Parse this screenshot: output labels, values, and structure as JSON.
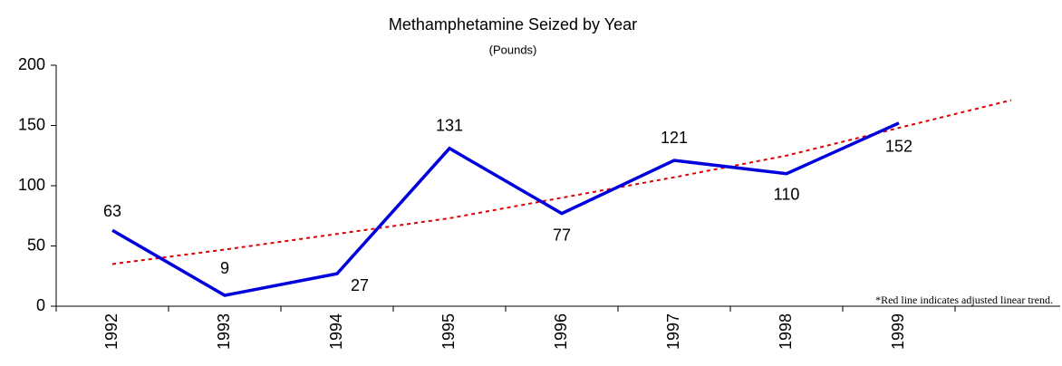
{
  "chart_data": {
    "type": "line",
    "title": "Methamphetamine Seized by Year",
    "subtitle": "(Pounds)",
    "annotation": "*Red line indicates adjusted linear trend.",
    "categories": [
      "1992",
      "1993",
      "1994",
      "1995",
      "1996",
      "1997",
      "1998",
      "1999",
      null
    ],
    "series": [
      {
        "color": "#0000dd",
        "values": [
          63,
          9,
          27,
          131,
          77,
          121,
          110,
          152,
          null
        ],
        "labels": true
      },
      {
        "color": "#dd0000",
        "dashed": true,
        "values": [
          35,
          47,
          60,
          73,
          90,
          107,
          125,
          148,
          171
        ]
      }
    ],
    "ylim": [
      0,
      200
    ],
    "yticks": [
      0,
      50,
      100,
      150,
      200
    ]
  }
}
